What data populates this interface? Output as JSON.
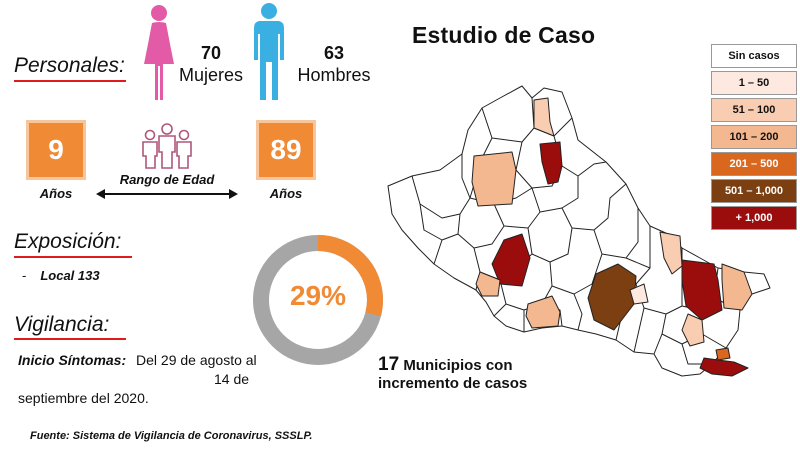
{
  "personales": {
    "title": "Personales:",
    "female": {
      "count": "70",
      "label": "Mujeres",
      "icon": "female-figure-icon",
      "color": "#e35aa6"
    },
    "male": {
      "count": "63",
      "label": "Hombres",
      "icon": "male-figure-icon",
      "color": "#3ab0e2"
    }
  },
  "age_range": {
    "min_value": "9",
    "min_unit": "Años",
    "max_value": "89",
    "max_unit": "Años",
    "label": "Rango de Edad",
    "icon": "people-group-icon"
  },
  "exposicion": {
    "title": "Exposición:",
    "items": [
      "Local 133"
    ]
  },
  "vigilancia": {
    "title": "Vigilancia:",
    "symptoms_label": "Inicio Síntomas:",
    "symptoms_line1": "Del 29 de agosto al",
    "symptoms_line2": "14 de",
    "symptoms_line3": "septiembre del 2020."
  },
  "donut": {
    "percent": 29,
    "percent_label": "29%",
    "color_fill": "#f08a35",
    "color_rest": "#a6a6a6"
  },
  "summary": {
    "count": "17",
    "line1": "Municipios con",
    "line2": "incremento de casos"
  },
  "source": "Fuente: Sistema de Vigilancia de Coronavirus, SSSLP.",
  "map": {
    "title": "Estudio de Caso",
    "legend": [
      {
        "label": "Sin casos",
        "color": "#ffffff",
        "text_color": "#111111"
      },
      {
        "label": "1 – 50",
        "color": "#fde9df",
        "text_color": "#111111"
      },
      {
        "label": "51 – 100",
        "color": "#f8cdb1",
        "text_color": "#111111"
      },
      {
        "label": "101 – 200",
        "color": "#f4b890",
        "text_color": "#111111"
      },
      {
        "label": "201 – 500",
        "color": "#d9681e",
        "text_color": "#ffffff"
      },
      {
        "label": "501 – 1,000",
        "color": "#7b3f12",
        "text_color": "#ffffff"
      },
      {
        "label": "+ 1,000",
        "color": "#9b0d0d",
        "text_color": "#ffffff"
      }
    ]
  }
}
